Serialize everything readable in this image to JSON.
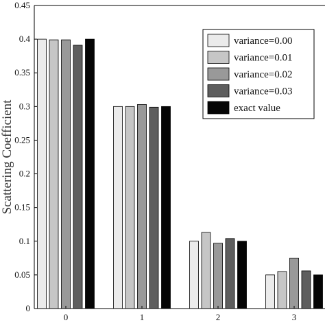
{
  "chart_data": {
    "type": "bar",
    "categories": [
      "0",
      "1",
      "2",
      "3"
    ],
    "series": [
      {
        "name": "variance=0.00",
        "values": [
          0.4,
          0.3,
          0.1,
          0.05
        ],
        "color": "#ebebeb"
      },
      {
        "name": "variance=0.01",
        "values": [
          0.399,
          0.3,
          0.113,
          0.055
        ],
        "color": "#c6c6c6"
      },
      {
        "name": "variance=0.02",
        "values": [
          0.399,
          0.303,
          0.097,
          0.075
        ],
        "color": "#999999"
      },
      {
        "name": "variance=0.03",
        "values": [
          0.391,
          0.299,
          0.104,
          0.056
        ],
        "color": "#5e5e5e"
      },
      {
        "name": "exact value",
        "values": [
          0.4,
          0.3,
          0.1,
          0.05
        ],
        "color": "#050505"
      }
    ],
    "ylim": [
      0,
      0.45
    ],
    "yticks": [
      "0",
      "0.05",
      "0.1",
      "0.15",
      "0.2",
      "0.25",
      "0.3",
      "0.35",
      "0.4",
      "0.45"
    ],
    "ylabel": "Scattering Coefficient",
    "xlabel": "",
    "legend_position": "top-right",
    "grid": false
  }
}
